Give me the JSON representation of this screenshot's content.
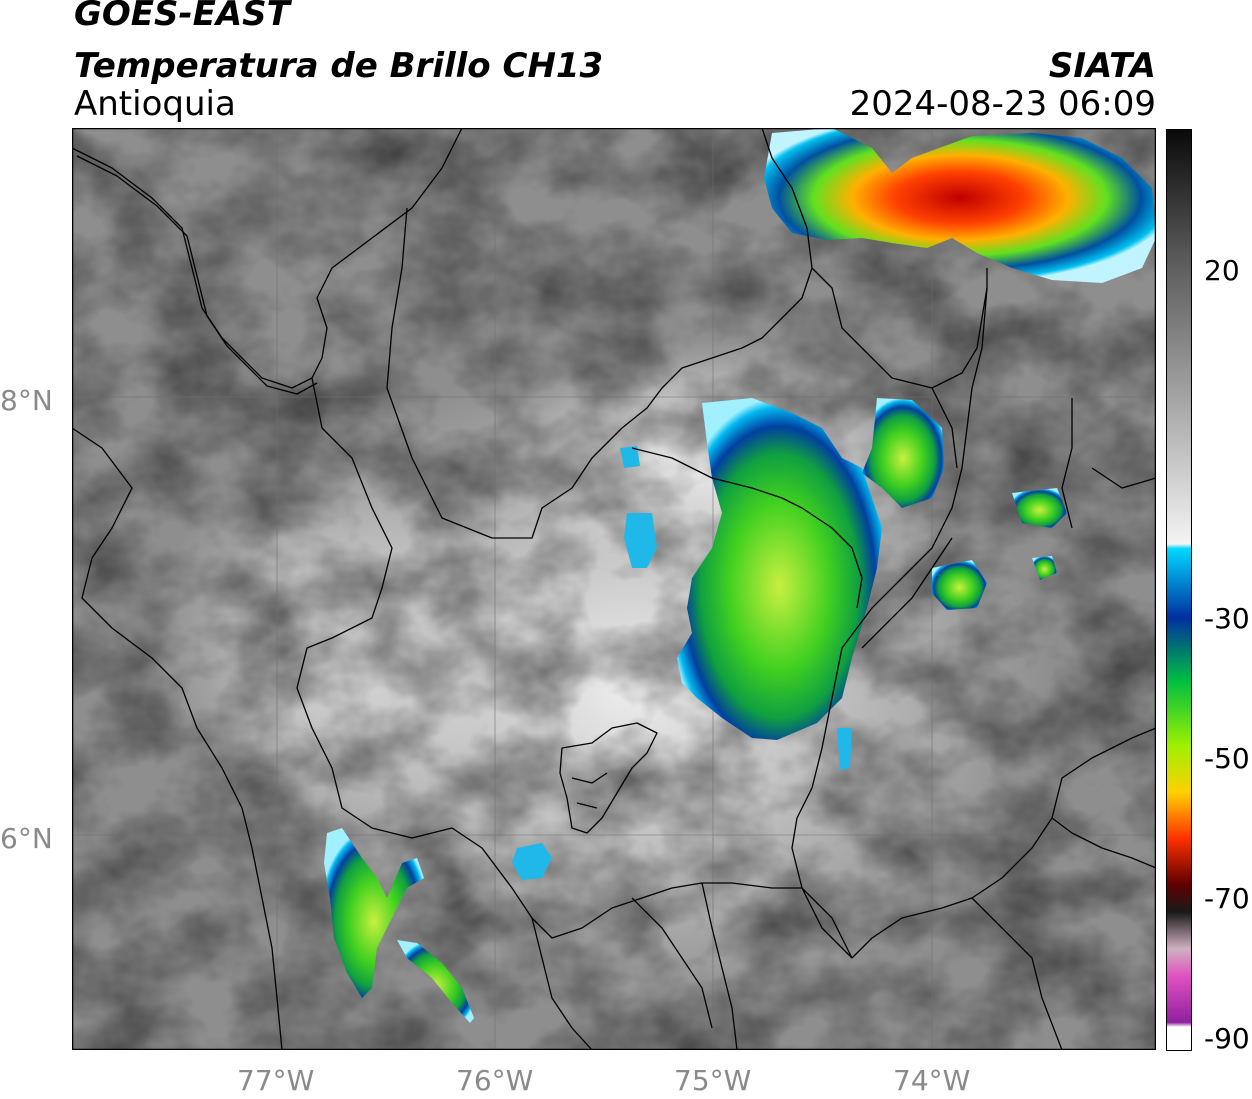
{
  "header": {
    "line1": "GOES-EAST",
    "line2": "Temperatura de Brillo CH13",
    "region": "Antioquia",
    "agency": "SIATA",
    "timestamp": "2024-08-23 06:09"
  },
  "map": {
    "lat_labels": [
      "8°N",
      "6°N"
    ],
    "lon_labels": [
      "77°W",
      "76°W",
      "75°W",
      "74°W"
    ],
    "background_gray": "#9a9a9a",
    "boundary_color": "#000000"
  },
  "colorbar": {
    "tick_labels": [
      "20",
      "-30",
      "-50",
      "-70",
      "-90"
    ],
    "stops": [
      {
        "color": "#0a0a0a"
      },
      {
        "color": "#5a5a5a"
      },
      {
        "color": "#a8a8a8"
      },
      {
        "color": "#f4f4f4"
      },
      {
        "color": "#00d8ff"
      },
      {
        "color": "#0030a0"
      },
      {
        "color": "#00c040"
      },
      {
        "color": "#a0f000"
      },
      {
        "color": "#ffd000"
      },
      {
        "color": "#ff3000"
      },
      {
        "color": "#600000"
      },
      {
        "color": "#1a1a1a"
      },
      {
        "color": "#d0b0c0"
      },
      {
        "color": "#e050c0"
      },
      {
        "color": "#9020a0"
      },
      {
        "color": "#ffffff"
      }
    ]
  }
}
